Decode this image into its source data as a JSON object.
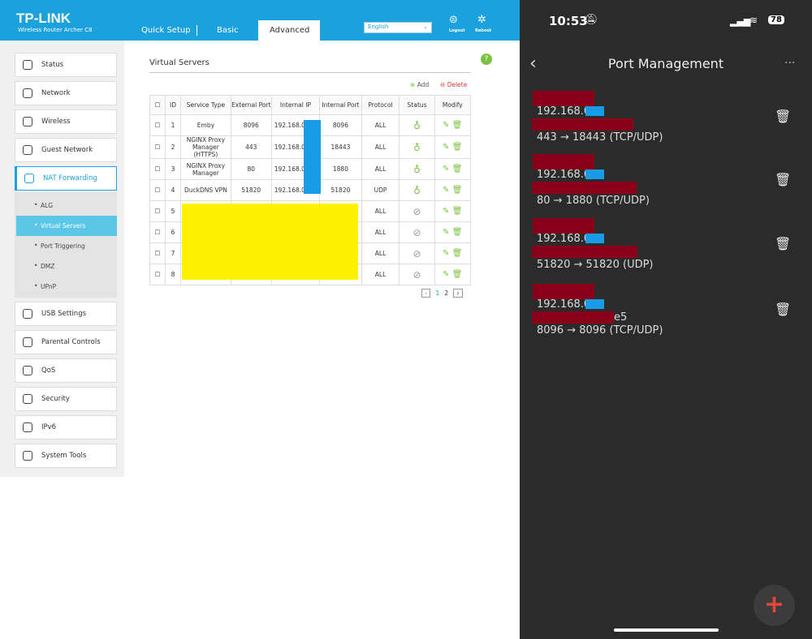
{
  "router": {
    "logo": "TP-LINK",
    "model": "Wireless Router Archer C8",
    "tabs": [
      "Quick Setup",
      "Basic",
      "Advanced"
    ],
    "active_tab": 2,
    "language": "English",
    "logout": "Logout",
    "reboot": "Reboot",
    "menu": [
      "Status",
      "Network",
      "Wireless",
      "Guest Network",
      "NAT Forwarding"
    ],
    "active_menu": 4,
    "submenu": [
      "ALG",
      "Virtual Servers",
      "Port Triggering",
      "DMZ",
      "UPnP"
    ],
    "active_submenu": 1,
    "menu_after": [
      "USB Settings",
      "Parental Controls",
      "QoS",
      "Security",
      "IPv6",
      "System Tools"
    ],
    "page_title": "Virtual Servers",
    "help": "?",
    "add": "Add",
    "delete": "Delete",
    "table": {
      "headers": [
        "ID",
        "Service Type",
        "External Port",
        "Internal IP",
        "Internal Port",
        "Protocol",
        "Status",
        "Modify"
      ],
      "rows": [
        {
          "id": "1",
          "service": "Emby",
          "ext": "8096",
          "ip": "192.168.0",
          "port": "8096",
          "protocol": "ALL",
          "enabled": true
        },
        {
          "id": "2",
          "service": "NGINX Proxy Manager (HTTPS)",
          "ext": "443",
          "ip": "192.168.0",
          "port": "18443",
          "protocol": "ALL",
          "enabled": true
        },
        {
          "id": "3",
          "service": "NGINX Proxy Manager",
          "ext": "80",
          "ip": "192.168.0",
          "port": "1880",
          "protocol": "ALL",
          "enabled": true
        },
        {
          "id": "4",
          "service": "DuckDNS VPN",
          "ext": "51820",
          "ip": "192.168.0",
          "port": "51820",
          "protocol": "UDP",
          "enabled": true
        },
        {
          "id": "5",
          "protocol": "ALL",
          "enabled": false
        },
        {
          "id": "6",
          "protocol": "ALL",
          "enabled": false
        },
        {
          "id": "7",
          "protocol": "ALL",
          "enabled": false
        },
        {
          "id": "8",
          "protocol": "ALL",
          "enabled": false
        }
      ]
    },
    "pages": [
      "1",
      "2"
    ]
  },
  "phone": {
    "time": "10:53",
    "battery": "78",
    "title": "Port Management",
    "entries": [
      {
        "ip": "192.168.0.",
        "ports": "443 → 18443 (TCP/UDP)"
      },
      {
        "ip": "192.168.0.",
        "ports": "80 → 1880 (TCP/UDP)"
      },
      {
        "ip": "192.168.0.",
        "ports": "51820 → 51820 (UDP)"
      },
      {
        "ip": "192.168.0.",
        "extra": "e5",
        "ports": "8096 → 8096 (TCP/UDP)"
      }
    ]
  }
}
